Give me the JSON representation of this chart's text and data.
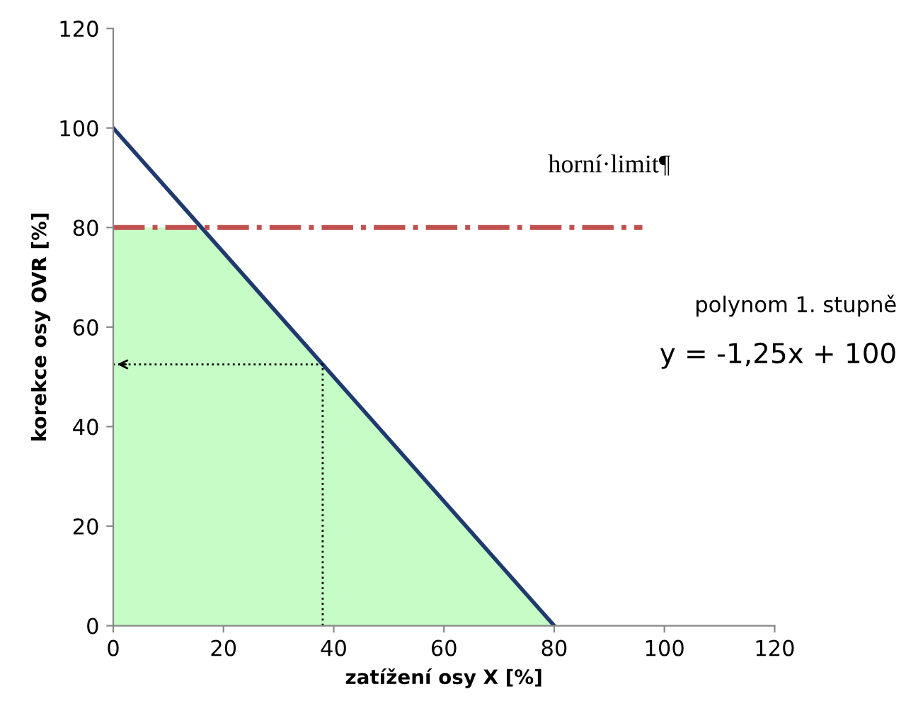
{
  "chart_data": {
    "type": "line",
    "xlabel": "zatížení osy X [%]",
    "ylabel": "korekce osy OVR [%]",
    "xlim": [
      0,
      120
    ],
    "ylim": [
      0,
      120
    ],
    "xticks": [
      0,
      20,
      40,
      60,
      80,
      100,
      120
    ],
    "yticks": [
      0,
      20,
      40,
      60,
      80,
      100,
      120
    ],
    "grid": false,
    "legend": false,
    "marker": "none",
    "series": [
      {
        "type": "area",
        "color": "#c6fcc6",
        "x": [
          0,
          16,
          80
        ],
        "values": [
          80,
          80,
          0
        ]
      },
      {
        "color": "#1f3a6e",
        "x": [
          0,
          80
        ],
        "values": [
          100,
          0
        ]
      },
      {
        "color": "#000000",
        "line_style": "dotted",
        "x": [
          38,
          38,
          0
        ],
        "values": [
          0,
          52.5,
          52.5
        ]
      }
    ],
    "ref_lines": [
      {
        "axis": "y",
        "value": 80,
        "label": "horní·limit¶",
        "color": "#c0504d",
        "line_style": "dashdot"
      }
    ],
    "annotations": [
      "polynom 1. stupně",
      "y = -1,25x + 100"
    ]
  }
}
